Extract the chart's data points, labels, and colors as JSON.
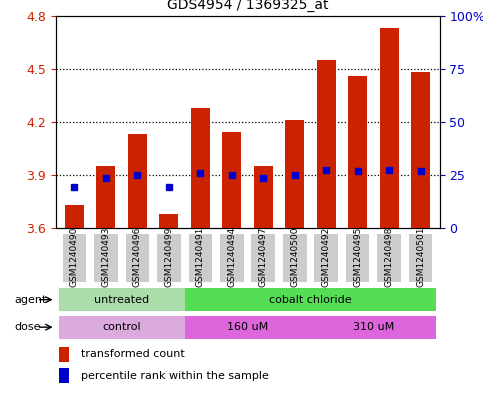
{
  "title": "GDS4954 / 1369325_at",
  "samples": [
    "GSM1240490",
    "GSM1240493",
    "GSM1240496",
    "GSM1240499",
    "GSM1240491",
    "GSM1240494",
    "GSM1240497",
    "GSM1240500",
    "GSM1240492",
    "GSM1240495",
    "GSM1240498",
    "GSM1240501"
  ],
  "bar_values": [
    3.73,
    3.95,
    4.13,
    3.68,
    4.28,
    4.14,
    3.95,
    4.21,
    4.55,
    4.46,
    4.73,
    4.48
  ],
  "blue_dot_values": [
    3.83,
    3.88,
    3.9,
    3.83,
    3.91,
    3.9,
    3.88,
    3.9,
    3.93,
    3.92,
    3.93,
    3.92
  ],
  "bar_bottom": 3.6,
  "ylim_min": 3.6,
  "ylim_max": 4.8,
  "yticks": [
    3.6,
    3.9,
    4.2,
    4.5,
    4.8
  ],
  "ytick_labels": [
    "3.6",
    "3.9",
    "4.2",
    "4.5",
    "4.8"
  ],
  "right_yticks": [
    0,
    25,
    50,
    75,
    100
  ],
  "right_ytick_labels": [
    "0",
    "25",
    "50",
    "75",
    "100%"
  ],
  "bar_color": "#cc2200",
  "blue_dot_color": "#0000cc",
  "legend_labels": [
    "transformed count",
    "percentile rank within the sample"
  ],
  "background_color": "#ffffff",
  "tick_bg_color": "#cccccc",
  "tick_label_color_left": "#cc2200",
  "tick_label_color_right": "#0000cc",
  "agent_untreated_color": "#aaddaa",
  "agent_cobalt_color": "#55dd55",
  "dose_control_color": "#ddaadd",
  "dose_160_color": "#dd66dd",
  "dose_310_color": "#dd66dd",
  "grid_dotted_vals": [
    3.9,
    4.2,
    4.5
  ],
  "agent_row_label": "agent",
  "dose_row_label": "dose"
}
